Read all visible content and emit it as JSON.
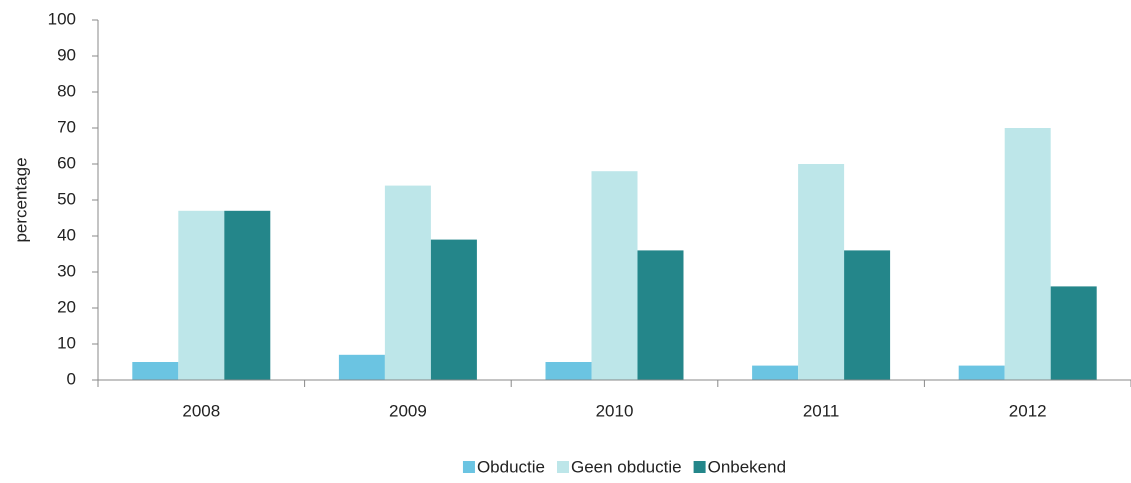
{
  "chart_data": {
    "type": "bar",
    "y_label": "percentage",
    "categories": [
      "2008",
      "2009",
      "2010",
      "2011",
      "2012"
    ],
    "series": [
      {
        "name": "Obductie",
        "color": "#6bc4e2",
        "values": [
          5,
          7,
          5,
          4,
          4
        ]
      },
      {
        "name": "Geen obductie",
        "color": "#bde6e9",
        "values": [
          47,
          54,
          58,
          60,
          70
        ]
      },
      {
        "name": "Onbekend",
        "color": "#24868a",
        "values": [
          47,
          39,
          36,
          36,
          26
        ]
      }
    ],
    "ylim": [
      0,
      100
    ],
    "yticks": [
      0,
      10,
      20,
      30,
      40,
      50,
      60,
      70,
      80,
      90,
      100
    ],
    "grid": false,
    "legend": "bottom"
  }
}
